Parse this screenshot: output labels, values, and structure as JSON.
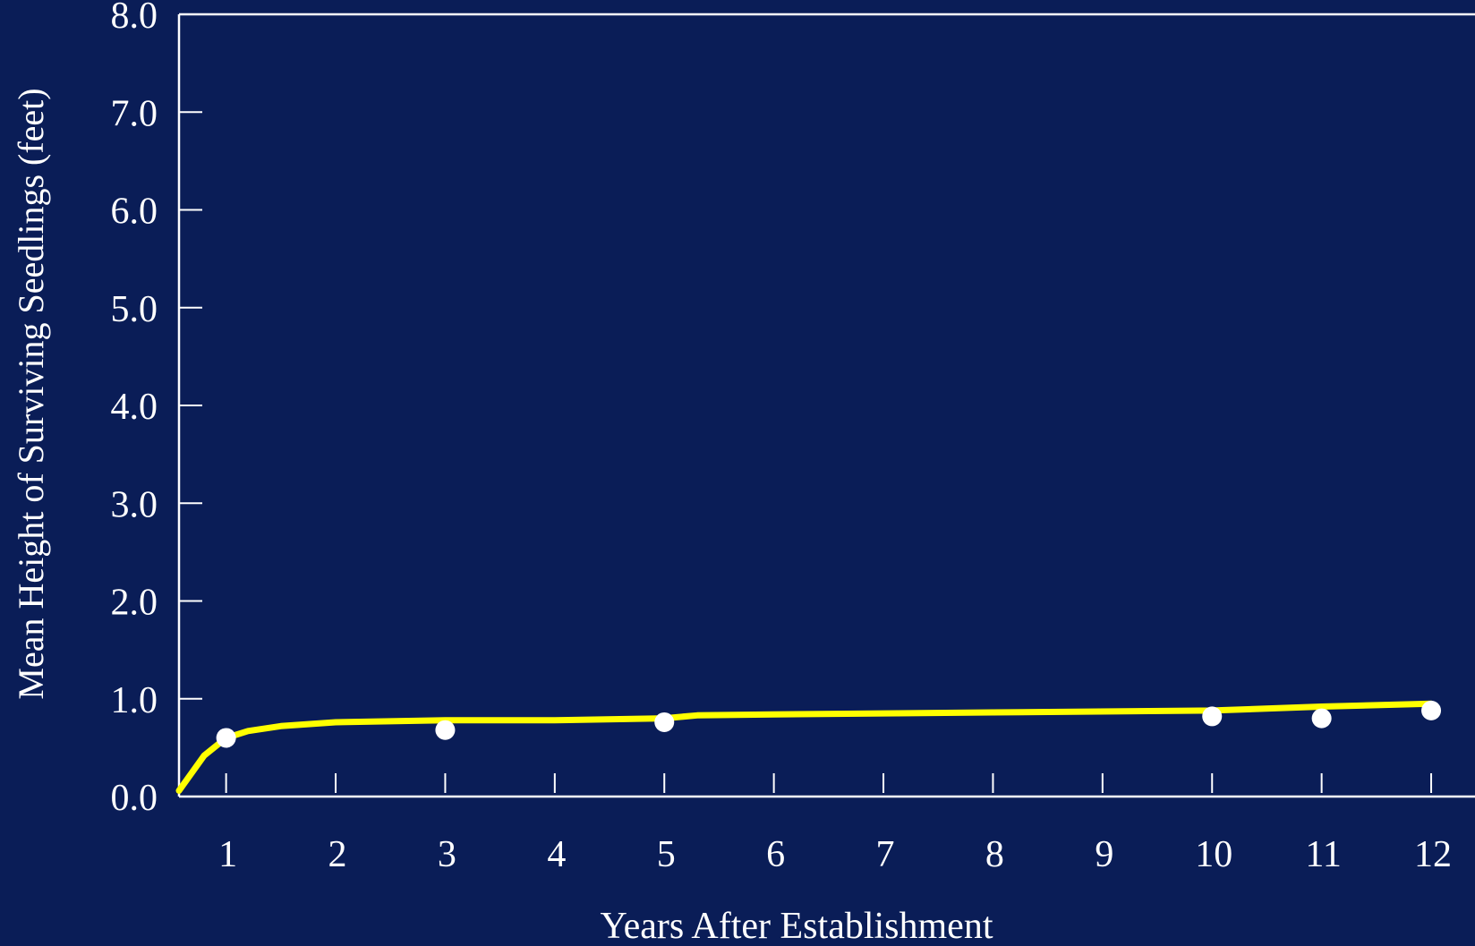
{
  "colors": {
    "background": "#0a1d57",
    "axis": "#ffffff",
    "trend_line": "#ffff00",
    "points": "#ffffff"
  },
  "chart_data": {
    "type": "scatter",
    "title": "",
    "xlabel": "Years After Establishment",
    "ylabel": "Mean Height of Surviving Seedlings (feet)",
    "xlim": [
      0.57,
      12.4
    ],
    "ylim": [
      0.0,
      8.0
    ],
    "x_ticks": [
      1,
      2,
      3,
      4,
      5,
      6,
      7,
      8,
      9,
      10,
      11,
      12
    ],
    "x_tick_labels": [
      "1",
      "2",
      "3",
      "4",
      "5",
      "6",
      "7",
      "8",
      "9",
      "10",
      "11",
      "12"
    ],
    "y_ticks": [
      0,
      1,
      2,
      3,
      4,
      5,
      6,
      7,
      8
    ],
    "y_tick_labels": [
      "0.0",
      "1.0",
      "2.0",
      "3.0",
      "4.0",
      "5.0",
      "6.0",
      "7.0",
      "8.0"
    ],
    "grid": false,
    "series": [
      {
        "kind": "points",
        "x": [
          1,
          3,
          5,
          10,
          11,
          12
        ],
        "y": [
          0.6,
          0.68,
          0.76,
          0.82,
          0.8,
          0.88
        ]
      },
      {
        "kind": "fit-line",
        "x": [
          0.57,
          0.8,
          1.0,
          1.2,
          1.5,
          2.0,
          2.5,
          3.0,
          4.0,
          5.0,
          5.3,
          6.0,
          8.0,
          10.0,
          11.0,
          12.0
        ],
        "y": [
          0.06,
          0.42,
          0.6,
          0.67,
          0.72,
          0.76,
          0.77,
          0.78,
          0.78,
          0.8,
          0.83,
          0.84,
          0.86,
          0.88,
          0.92,
          0.95
        ]
      }
    ]
  }
}
